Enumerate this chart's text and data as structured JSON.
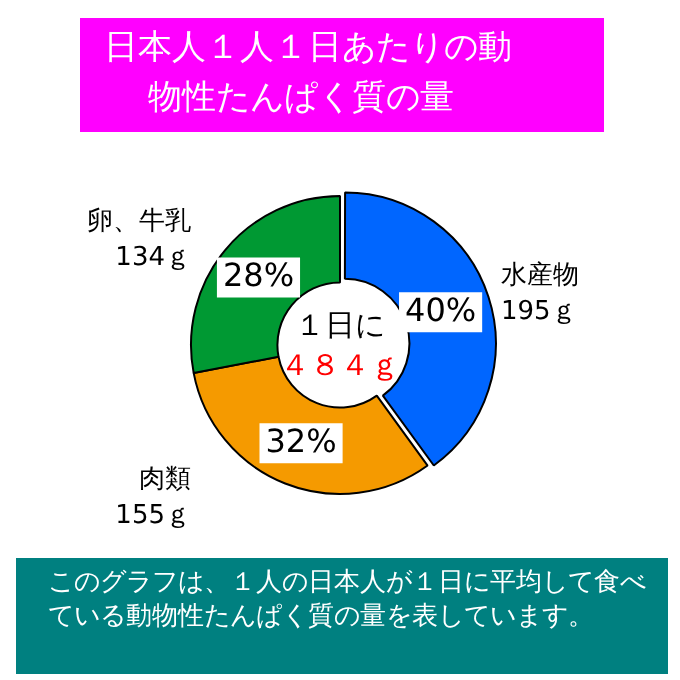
{
  "chart_data": {
    "type": "donut",
    "title": "日本人１人１日あたりの動物性たんぱく質の量",
    "categories": [
      "水産物",
      "肉類",
      "卵、牛乳"
    ],
    "values": [
      40,
      32,
      28
    ],
    "colors": [
      "#0066ff",
      "#f59a00",
      "#009933"
    ],
    "value_labels": [
      "40%",
      "32%",
      "28%"
    ],
    "annotations": [
      {
        "text": "195ｇ",
        "x": "水産物"
      },
      {
        "text": "155ｇ",
        "x": "肉類"
      },
      {
        "text": "134ｇ",
        "x": "卵、牛乳"
      },
      "１日に",
      "４８４ｇ",
      "このグラフは、１人の日本人が１日に平均して食べている動物性たんぱく質の量を表しています。"
    ],
    "legend": false
  }
}
